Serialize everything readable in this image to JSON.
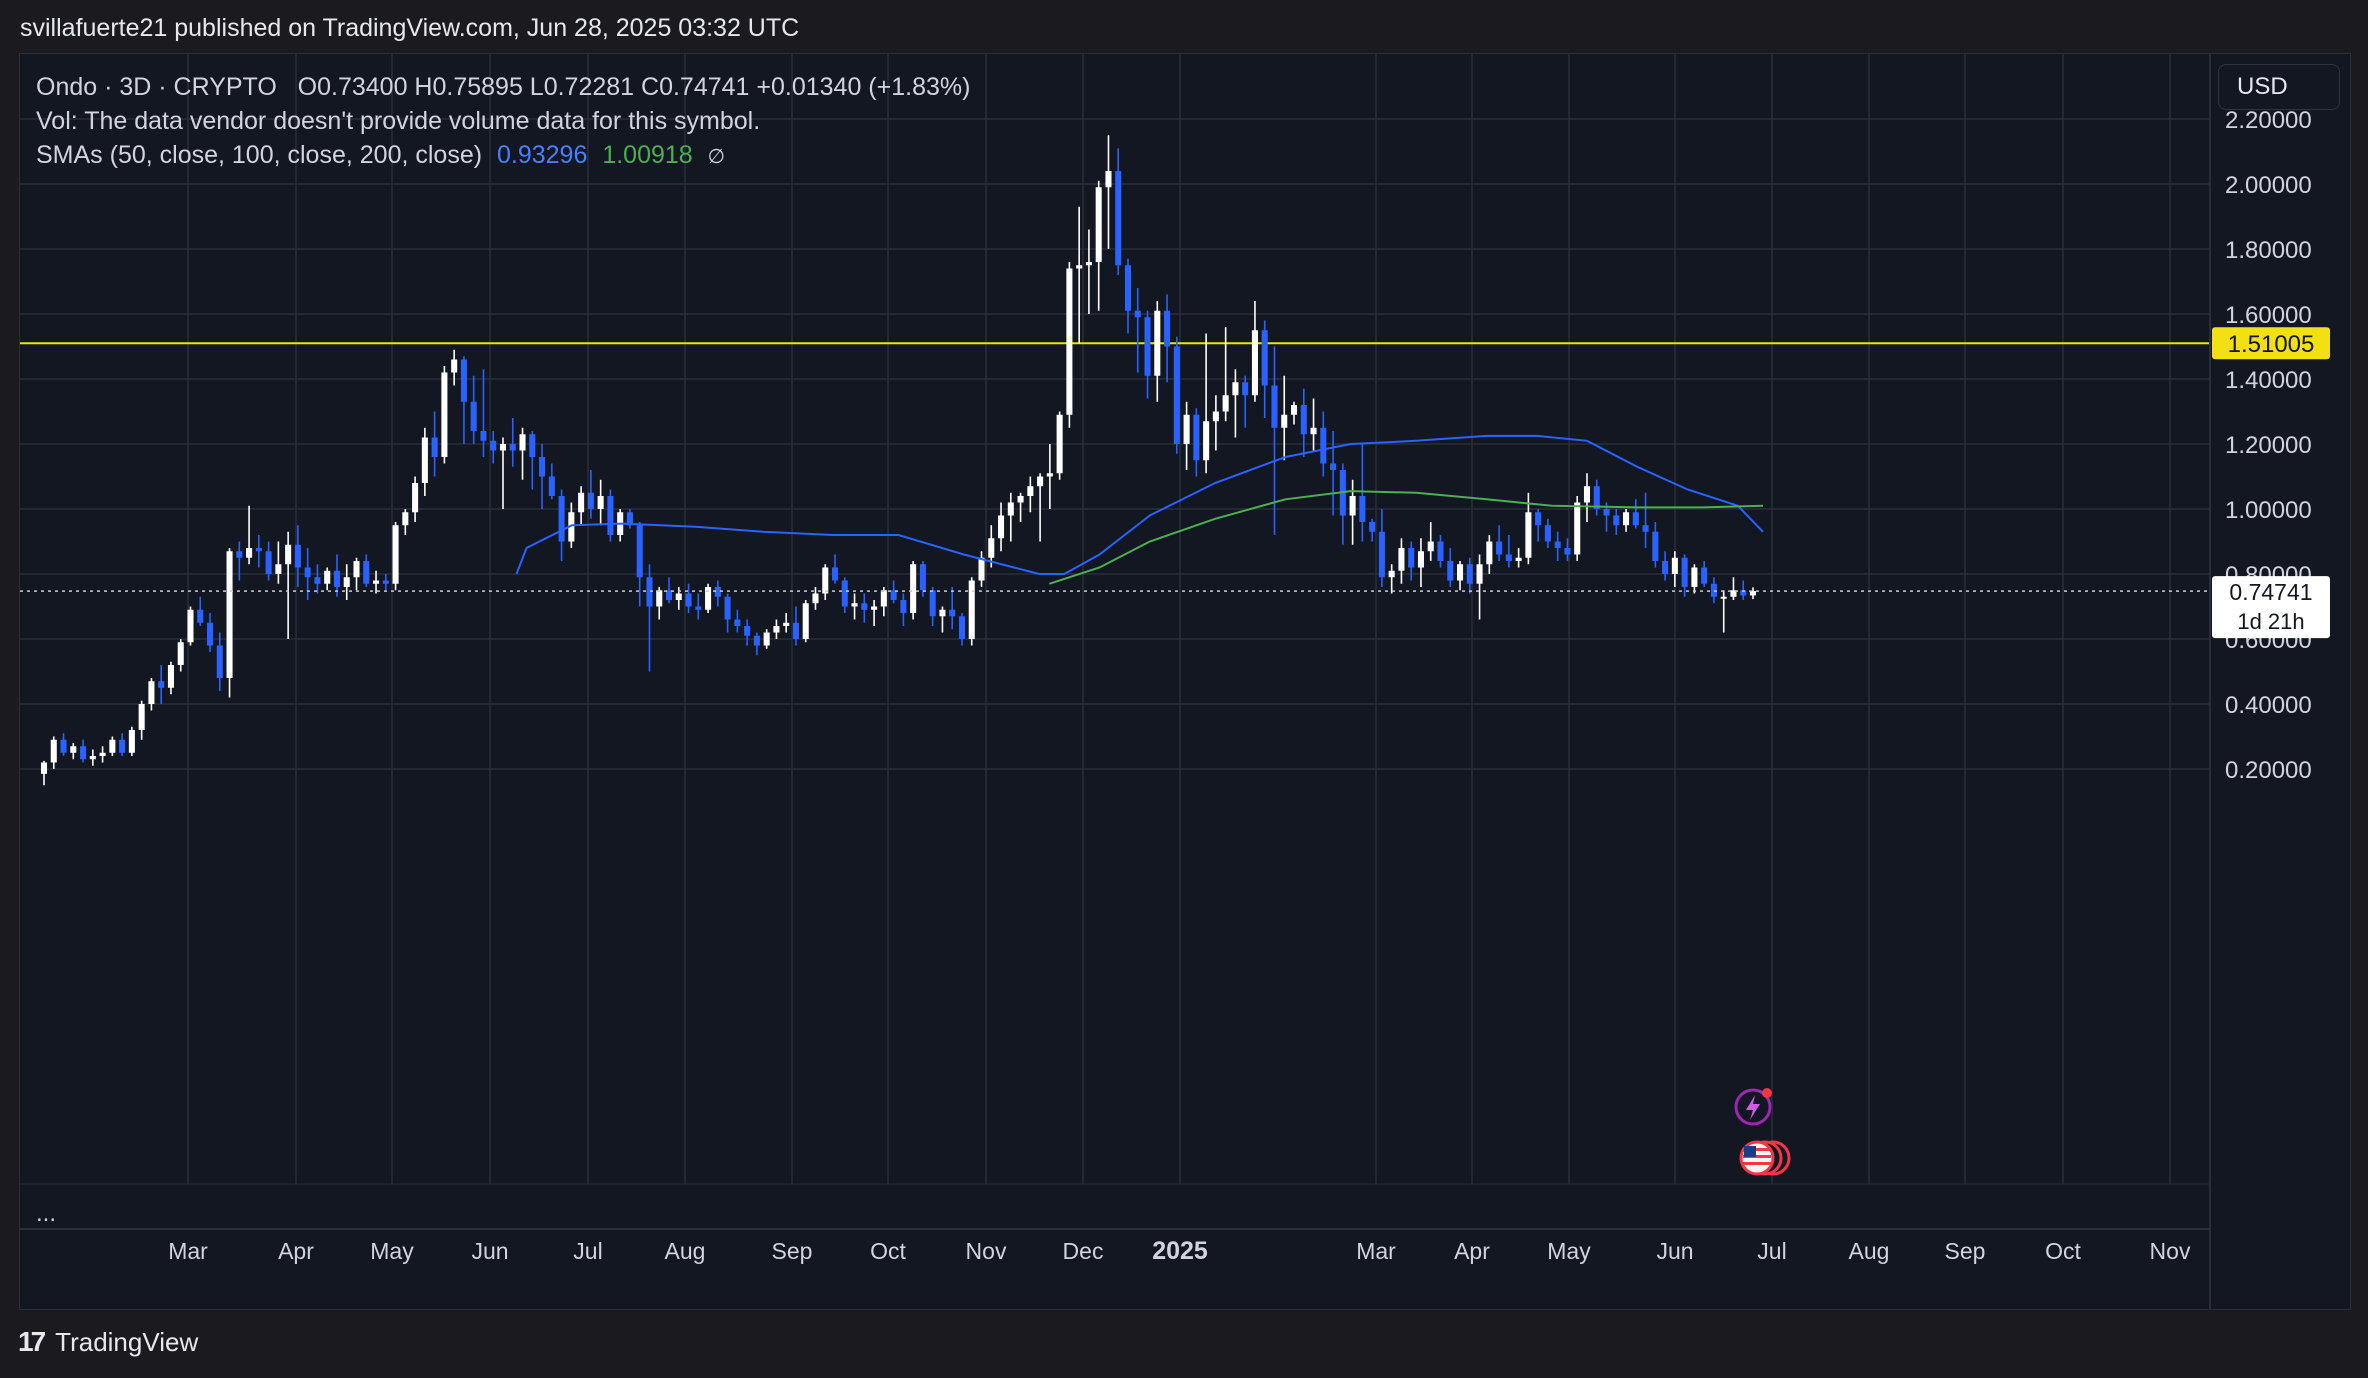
{
  "header": {
    "text": "svillafuerte21 published on TradingView.com, Jun 28, 2025 03:32 UTC"
  },
  "legend": {
    "title": "Ondo · 3D · CRYPTO",
    "ohlc": "O0.73400  H0.75895  L0.72281  C0.74741  +0.01340 (+1.83%)",
    "vol": "Vol: The data vendor doesn't provide volume data for this symbol.",
    "sma_label": "SMAs (50, close, 100, close, 200, close)",
    "sma_blue": "0.93296",
    "sma_green": "1.00918",
    "eye_icon": "∅"
  },
  "currency": "USD",
  "ellipsis": "...",
  "footer": {
    "brand": "TradingView",
    "logo": "17"
  },
  "colors": {
    "background": "#131722",
    "grid": "#2a2e39",
    "candle_up": "#ffffff",
    "candle_down": "#2962ff",
    "sma_blue": "#2962ff",
    "sma_green": "#4caf50",
    "resistance": "#f2e012",
    "price_line": "#c8cbd3"
  },
  "chart_data": {
    "type": "candlestick",
    "symbol": "Ondo",
    "timeframe": "3D",
    "y_axis": {
      "min": 0.1,
      "max": 2.3,
      "side": "right",
      "ticks": [
        "2.20000",
        "2.00000",
        "1.80000",
        "1.60000",
        "1.40000",
        "1.20000",
        "1.00000",
        "0.80000",
        "0.60000",
        "0.40000",
        "0.20000"
      ]
    },
    "x_axis": {
      "ticks": [
        "Mar",
        "Apr",
        "May",
        "Jun",
        "Jul",
        "Aug",
        "Sep",
        "Oct",
        "Nov",
        "Dec",
        "2025",
        "Mar",
        "Apr",
        "May",
        "Jun",
        "Jul",
        "Aug",
        "Sep",
        "Oct",
        "Nov"
      ],
      "bold_ticks": [
        "2025"
      ]
    },
    "horizontal_line": {
      "value": 1.51005,
      "label": "1.51005"
    },
    "last_price": {
      "value": 0.74741,
      "label": "0.74741",
      "countdown": "1d 21h"
    },
    "sma_blue_points": [
      [
        0.94,
        0.8
      ],
      [
        0.96,
        0.88
      ],
      [
        1.05,
        0.95
      ],
      [
        1.15,
        0.955
      ],
      [
        1.3,
        0.945
      ],
      [
        1.43,
        0.93
      ],
      [
        1.57,
        0.92
      ],
      [
        1.7,
        0.92
      ],
      [
        1.83,
        0.86
      ],
      [
        1.93,
        0.82
      ],
      [
        1.98,
        0.8
      ],
      [
        2.03,
        0.8
      ],
      [
        2.1,
        0.86
      ],
      [
        2.2,
        0.98
      ],
      [
        2.33,
        1.08
      ],
      [
        2.47,
        1.16
      ],
      [
        2.6,
        1.2
      ],
      [
        2.73,
        1.21
      ],
      [
        2.87,
        1.225
      ],
      [
        2.97,
        1.225
      ],
      [
        3.07,
        1.21
      ],
      [
        3.17,
        1.13
      ],
      [
        3.27,
        1.06
      ],
      [
        3.37,
        1.01
      ],
      [
        3.42,
        0.93
      ]
    ],
    "sma_green_points": [
      [
        2.0,
        0.77
      ],
      [
        2.1,
        0.82
      ],
      [
        2.2,
        0.9
      ],
      [
        2.33,
        0.97
      ],
      [
        2.47,
        1.03
      ],
      [
        2.6,
        1.055
      ],
      [
        2.73,
        1.05
      ],
      [
        2.87,
        1.03
      ],
      [
        3.0,
        1.01
      ],
      [
        3.17,
        1.005
      ],
      [
        3.3,
        1.005
      ],
      [
        3.42,
        1.01
      ]
    ],
    "candles": [
      [
        0.185,
        0.225,
        0.15,
        0.22
      ],
      [
        0.22,
        0.3,
        0.2,
        0.29
      ],
      [
        0.29,
        0.31,
        0.24,
        0.25
      ],
      [
        0.25,
        0.28,
        0.23,
        0.27
      ],
      [
        0.27,
        0.29,
        0.22,
        0.23
      ],
      [
        0.23,
        0.26,
        0.21,
        0.24
      ],
      [
        0.24,
        0.27,
        0.22,
        0.25
      ],
      [
        0.25,
        0.3,
        0.24,
        0.29
      ],
      [
        0.29,
        0.31,
        0.24,
        0.25
      ],
      [
        0.25,
        0.33,
        0.24,
        0.32
      ],
      [
        0.32,
        0.41,
        0.29,
        0.4
      ],
      [
        0.4,
        0.48,
        0.38,
        0.47
      ],
      [
        0.47,
        0.52,
        0.4,
        0.45
      ],
      [
        0.45,
        0.53,
        0.43,
        0.52
      ],
      [
        0.52,
        0.6,
        0.5,
        0.59
      ],
      [
        0.59,
        0.7,
        0.58,
        0.69
      ],
      [
        0.69,
        0.73,
        0.64,
        0.65
      ],
      [
        0.65,
        0.68,
        0.56,
        0.58
      ],
      [
        0.58,
        0.62,
        0.44,
        0.48
      ],
      [
        0.48,
        0.88,
        0.42,
        0.87
      ],
      [
        0.87,
        0.9,
        0.78,
        0.85
      ],
      [
        0.85,
        1.01,
        0.83,
        0.88
      ],
      [
        0.88,
        0.92,
        0.82,
        0.87
      ],
      [
        0.87,
        0.9,
        0.78,
        0.8
      ],
      [
        0.8,
        0.9,
        0.77,
        0.83
      ],
      [
        0.83,
        0.93,
        0.6,
        0.89
      ],
      [
        0.89,
        0.95,
        0.76,
        0.82
      ],
      [
        0.82,
        0.88,
        0.72,
        0.79
      ],
      [
        0.79,
        0.83,
        0.74,
        0.77
      ],
      [
        0.77,
        0.82,
        0.75,
        0.81
      ],
      [
        0.81,
        0.86,
        0.73,
        0.76
      ],
      [
        0.76,
        0.83,
        0.72,
        0.79
      ],
      [
        0.79,
        0.85,
        0.75,
        0.84
      ],
      [
        0.84,
        0.86,
        0.76,
        0.77
      ],
      [
        0.77,
        0.81,
        0.74,
        0.78
      ],
      [
        0.78,
        0.8,
        0.75,
        0.77
      ],
      [
        0.77,
        0.96,
        0.75,
        0.95
      ],
      [
        0.95,
        1.0,
        0.92,
        0.99
      ],
      [
        0.99,
        1.1,
        0.96,
        1.08
      ],
      [
        1.08,
        1.25,
        1.04,
        1.22
      ],
      [
        1.22,
        1.3,
        1.1,
        1.16
      ],
      [
        1.16,
        1.44,
        1.14,
        1.42
      ],
      [
        1.42,
        1.49,
        1.38,
        1.46
      ],
      [
        1.46,
        1.47,
        1.2,
        1.33
      ],
      [
        1.33,
        1.41,
        1.2,
        1.24
      ],
      [
        1.24,
        1.43,
        1.16,
        1.21
      ],
      [
        1.21,
        1.24,
        1.14,
        1.18
      ],
      [
        1.18,
        1.22,
        1.0,
        1.2
      ],
      [
        1.2,
        1.28,
        1.13,
        1.18
      ],
      [
        1.18,
        1.25,
        1.09,
        1.23
      ],
      [
        1.23,
        1.24,
        1.06,
        1.16
      ],
      [
        1.16,
        1.2,
        1.0,
        1.1
      ],
      [
        1.1,
        1.14,
        1.03,
        1.04
      ],
      [
        1.04,
        1.06,
        0.84,
        0.9
      ],
      [
        0.9,
        1.02,
        0.88,
        0.99
      ],
      [
        0.99,
        1.07,
        0.95,
        1.05
      ],
      [
        1.05,
        1.12,
        0.97,
        1.0
      ],
      [
        1.0,
        1.09,
        0.95,
        1.04
      ],
      [
        1.04,
        1.06,
        0.9,
        0.92
      ],
      [
        0.92,
        1.0,
        0.9,
        0.99
      ],
      [
        0.99,
        1.0,
        0.94,
        0.95
      ],
      [
        0.95,
        0.96,
        0.7,
        0.79
      ],
      [
        0.79,
        0.83,
        0.5,
        0.7
      ],
      [
        0.7,
        0.76,
        0.66,
        0.75
      ],
      [
        0.75,
        0.79,
        0.71,
        0.72
      ],
      [
        0.72,
        0.76,
        0.69,
        0.74
      ],
      [
        0.74,
        0.77,
        0.68,
        0.7
      ],
      [
        0.7,
        0.74,
        0.66,
        0.69
      ],
      [
        0.69,
        0.77,
        0.68,
        0.76
      ],
      [
        0.76,
        0.78,
        0.7,
        0.73
      ],
      [
        0.73,
        0.74,
        0.62,
        0.66
      ],
      [
        0.66,
        0.69,
        0.62,
        0.64
      ],
      [
        0.64,
        0.66,
        0.58,
        0.61
      ],
      [
        0.61,
        0.62,
        0.55,
        0.58
      ],
      [
        0.58,
        0.63,
        0.57,
        0.62
      ],
      [
        0.62,
        0.66,
        0.6,
        0.64
      ],
      [
        0.64,
        0.68,
        0.62,
        0.65
      ],
      [
        0.65,
        0.7,
        0.58,
        0.6
      ],
      [
        0.6,
        0.72,
        0.59,
        0.71
      ],
      [
        0.71,
        0.76,
        0.69,
        0.74
      ],
      [
        0.74,
        0.83,
        0.72,
        0.82
      ],
      [
        0.82,
        0.86,
        0.77,
        0.78
      ],
      [
        0.78,
        0.79,
        0.68,
        0.7
      ],
      [
        0.7,
        0.74,
        0.66,
        0.71
      ],
      [
        0.71,
        0.74,
        0.65,
        0.69
      ],
      [
        0.69,
        0.72,
        0.64,
        0.7
      ],
      [
        0.7,
        0.76,
        0.67,
        0.75
      ],
      [
        0.75,
        0.78,
        0.71,
        0.72
      ],
      [
        0.72,
        0.74,
        0.64,
        0.68
      ],
      [
        0.68,
        0.84,
        0.66,
        0.83
      ],
      [
        0.83,
        0.84,
        0.73,
        0.75
      ],
      [
        0.75,
        0.76,
        0.64,
        0.67
      ],
      [
        0.67,
        0.7,
        0.62,
        0.69
      ],
      [
        0.69,
        0.76,
        0.63,
        0.67
      ],
      [
        0.67,
        0.68,
        0.58,
        0.6
      ],
      [
        0.6,
        0.79,
        0.58,
        0.78
      ],
      [
        0.78,
        0.87,
        0.76,
        0.85
      ],
      [
        0.85,
        0.95,
        0.82,
        0.91
      ],
      [
        0.91,
        1.02,
        0.87,
        0.98
      ],
      [
        0.98,
        1.05,
        0.9,
        1.02
      ],
      [
        1.02,
        1.05,
        0.96,
        1.04
      ],
      [
        1.04,
        1.1,
        0.99,
        1.07
      ],
      [
        1.07,
        1.11,
        0.9,
        1.1
      ],
      [
        1.1,
        1.2,
        1.0,
        1.11
      ],
      [
        1.11,
        1.3,
        1.09,
        1.29
      ],
      [
        1.29,
        1.76,
        1.25,
        1.74
      ],
      [
        1.74,
        1.93,
        1.51,
        1.75
      ],
      [
        1.75,
        1.86,
        1.6,
        1.76
      ],
      [
        1.76,
        2.01,
        1.61,
        1.99
      ],
      [
        1.99,
        2.15,
        1.8,
        2.04
      ],
      [
        2.04,
        2.11,
        1.72,
        1.75
      ],
      [
        1.75,
        1.77,
        1.54,
        1.61
      ],
      [
        1.61,
        1.68,
        1.42,
        1.59
      ],
      [
        1.59,
        1.61,
        1.34,
        1.41
      ],
      [
        1.41,
        1.64,
        1.33,
        1.61
      ],
      [
        1.61,
        1.66,
        1.39,
        1.5
      ],
      [
        1.5,
        1.53,
        1.17,
        1.2
      ],
      [
        1.2,
        1.33,
        1.12,
        1.29
      ],
      [
        1.29,
        1.31,
        1.1,
        1.15
      ],
      [
        1.15,
        1.54,
        1.11,
        1.27
      ],
      [
        1.27,
        1.35,
        1.18,
        1.3
      ],
      [
        1.3,
        1.56,
        1.27,
        1.35
      ],
      [
        1.35,
        1.43,
        1.22,
        1.39
      ],
      [
        1.39,
        1.41,
        1.25,
        1.35
      ],
      [
        1.35,
        1.64,
        1.33,
        1.55
      ],
      [
        1.55,
        1.58,
        1.28,
        1.38
      ],
      [
        1.38,
        1.5,
        0.92,
        1.25
      ],
      [
        1.25,
        1.41,
        1.15,
        1.29
      ],
      [
        1.29,
        1.33,
        1.26,
        1.32
      ],
      [
        1.32,
        1.37,
        1.16,
        1.23
      ],
      [
        1.23,
        1.34,
        1.18,
        1.25
      ],
      [
        1.25,
        1.3,
        1.1,
        1.14
      ],
      [
        1.14,
        1.24,
        0.98,
        1.12
      ],
      [
        1.12,
        1.14,
        0.89,
        0.98
      ],
      [
        0.98,
        1.09,
        0.89,
        1.04
      ],
      [
        1.04,
        1.2,
        0.9,
        0.96
      ],
      [
        0.96,
        0.97,
        0.9,
        0.93
      ],
      [
        0.93,
        1.0,
        0.76,
        0.79
      ],
      [
        0.79,
        0.83,
        0.74,
        0.81
      ],
      [
        0.81,
        0.91,
        0.77,
        0.88
      ],
      [
        0.88,
        0.9,
        0.78,
        0.82
      ],
      [
        0.82,
        0.91,
        0.76,
        0.87
      ],
      [
        0.87,
        0.96,
        0.84,
        0.9
      ],
      [
        0.9,
        0.92,
        0.82,
        0.84
      ],
      [
        0.84,
        0.88,
        0.76,
        0.78
      ],
      [
        0.78,
        0.84,
        0.75,
        0.83
      ],
      [
        0.83,
        0.85,
        0.74,
        0.77
      ],
      [
        0.77,
        0.86,
        0.66,
        0.83
      ],
      [
        0.83,
        0.92,
        0.8,
        0.9
      ],
      [
        0.9,
        0.95,
        0.84,
        0.86
      ],
      [
        0.86,
        0.92,
        0.82,
        0.84
      ],
      [
        0.84,
        0.88,
        0.82,
        0.85
      ],
      [
        0.85,
        1.05,
        0.83,
        0.99
      ],
      [
        0.99,
        1.0,
        0.9,
        0.95
      ],
      [
        0.95,
        0.97,
        0.88,
        0.9
      ],
      [
        0.9,
        0.93,
        0.84,
        0.88
      ],
      [
        0.88,
        0.91,
        0.84,
        0.86
      ],
      [
        0.86,
        1.04,
        0.84,
        1.02
      ],
      [
        1.02,
        1.11,
        0.96,
        1.07
      ],
      [
        1.07,
        1.09,
        0.98,
        1.0
      ],
      [
        1.0,
        1.02,
        0.93,
        0.98
      ],
      [
        0.98,
        1.0,
        0.92,
        0.95
      ],
      [
        0.95,
        1.0,
        0.93,
        0.99
      ],
      [
        0.99,
        1.03,
        0.94,
        0.95
      ],
      [
        0.95,
        1.05,
        0.88,
        0.93
      ],
      [
        0.93,
        0.96,
        0.82,
        0.84
      ],
      [
        0.84,
        0.87,
        0.78,
        0.8
      ],
      [
        0.8,
        0.87,
        0.76,
        0.85
      ],
      [
        0.85,
        0.86,
        0.73,
        0.76
      ],
      [
        0.76,
        0.83,
        0.74,
        0.82
      ],
      [
        0.82,
        0.84,
        0.76,
        0.77
      ],
      [
        0.77,
        0.79,
        0.71,
        0.73
      ],
      [
        0.73,
        0.75,
        0.62,
        0.73
      ],
      [
        0.73,
        0.79,
        0.72,
        0.75
      ],
      [
        0.75,
        0.78,
        0.72,
        0.734
      ],
      [
        0.734,
        0.75895,
        0.72281,
        0.74741
      ]
    ]
  }
}
